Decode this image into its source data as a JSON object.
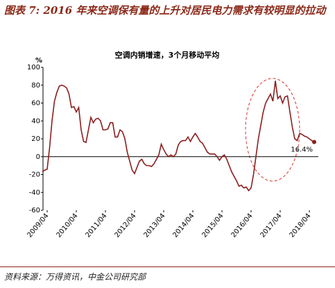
{
  "title": "图表 7: 2016 年来空调保有量的上升对居民电力需求有较明显的拉动",
  "source": "资料来源：万得资讯，中金公司研究部",
  "chart_data": {
    "type": "line",
    "title": "空调内销增速，3个月移动平均",
    "y_label": "%",
    "annotation": "16.4%",
    "categories": [
      null,
      null,
      "2009/04",
      null,
      null,
      null,
      null,
      null,
      null,
      null,
      null,
      null,
      null,
      null,
      "2010/04",
      null,
      null,
      null,
      null,
      null,
      null,
      null,
      null,
      null,
      null,
      null,
      "2011/04",
      null,
      null,
      null,
      null,
      null,
      null,
      null,
      null,
      null,
      null,
      null,
      "2012/04",
      null,
      null,
      null,
      null,
      null,
      null,
      null,
      null,
      null,
      null,
      null,
      "2013/04",
      null,
      null,
      null,
      null,
      null,
      null,
      null,
      null,
      null,
      null,
      null,
      "2014/04",
      null,
      null,
      null,
      null,
      null,
      null,
      null,
      null,
      null,
      null,
      null,
      "2015/04",
      null,
      null,
      null,
      null,
      null,
      null,
      null,
      null,
      null,
      null,
      null,
      "2016/04",
      null,
      null,
      null,
      null,
      null,
      null,
      null,
      null,
      null,
      null,
      null,
      "2017/04",
      null,
      null,
      null,
      null,
      null,
      null,
      null,
      null,
      null,
      null,
      null,
      "2018/04",
      null,
      null
    ],
    "series": [
      {
        "name": "空调内销增速",
        "color": "#8b1e1e",
        "values": [
          -17,
          -15,
          -14,
          10,
          40,
          62,
          72,
          79,
          80,
          79,
          77,
          70,
          55,
          56,
          50,
          55,
          30,
          17,
          16,
          30,
          44,
          38,
          42,
          43,
          40,
          30,
          30,
          31,
          38,
          38,
          22,
          22,
          30,
          28,
          20,
          5,
          -5,
          -15,
          -19,
          -12,
          -5,
          -3,
          -8,
          -10,
          -10,
          -11,
          -8,
          -3,
          2,
          14,
          8,
          3,
          0,
          2,
          0,
          3,
          13,
          17,
          18,
          18,
          22,
          17,
          22,
          26,
          22,
          17,
          15,
          10,
          5,
          3,
          3,
          3,
          0,
          -4,
          0,
          2,
          -3,
          -10,
          -17,
          -22,
          -27,
          -33,
          -32,
          -35,
          -34,
          -38,
          -35,
          -20,
          0,
          20,
          35,
          50,
          60,
          65,
          70,
          62,
          85,
          65,
          68,
          60,
          67,
          68,
          50,
          33,
          20,
          18,
          26,
          25,
          23,
          22,
          20,
          18,
          16.4
        ]
      }
    ],
    "ylim": [
      -60,
      100
    ],
    "yticks": [
      -60,
      -40,
      -20,
      0,
      20,
      40,
      60,
      80,
      100
    ]
  }
}
